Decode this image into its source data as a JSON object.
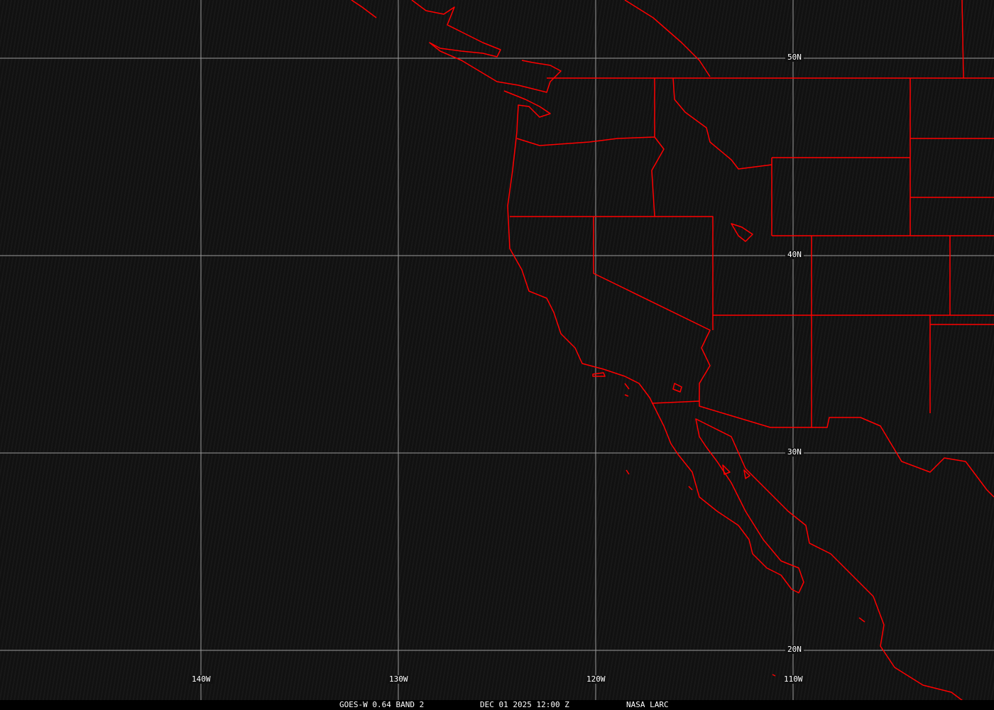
{
  "caption": {
    "satellite": "GOES-W 0.64 BAND 2",
    "datetime": "DEC 01 2025 12:00 Z",
    "source": "NASA LARC"
  },
  "grid": {
    "latitudes": [
      "50N",
      "40N",
      "30N",
      "20N"
    ],
    "longitudes": [
      "140W",
      "130W",
      "120W",
      "110W"
    ]
  },
  "colors": {
    "boundaries": "#ff0000",
    "gridlines": "#9a9a9a",
    "background": "#121212"
  }
}
